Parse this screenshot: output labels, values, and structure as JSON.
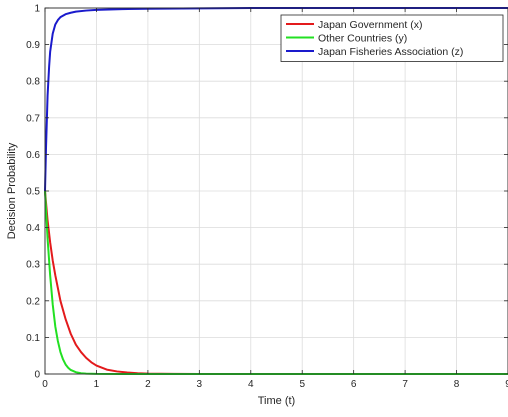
{
  "chart_data": {
    "type": "line",
    "xlabel": "Time (t)",
    "ylabel": "Decision Probability",
    "xlim": [
      0,
      9
    ],
    "ylim": [
      0,
      1
    ],
    "grid": true,
    "legend_position": "top-right",
    "x_ticks": [
      "0",
      "1",
      "2",
      "3",
      "4",
      "5",
      "6",
      "7",
      "8",
      "9"
    ],
    "y_ticks": [
      "0",
      "0.1",
      "0.2",
      "0.3",
      "0.4",
      "0.5",
      "0.6",
      "0.7",
      "0.8",
      "0.9",
      "1"
    ],
    "series": [
      {
        "name": "Japan Government (x)",
        "color": "#e31a1c",
        "x": [
          0,
          0.05,
          0.1,
          0.15,
          0.2,
          0.3,
          0.4,
          0.5,
          0.6,
          0.7,
          0.8,
          0.9,
          1.0,
          1.2,
          1.4,
          1.6,
          1.8,
          2.0,
          2.5,
          3,
          4,
          5,
          6,
          7,
          8,
          9
        ],
        "y": [
          0.5,
          0.42,
          0.36,
          0.31,
          0.27,
          0.2,
          0.15,
          0.11,
          0.08,
          0.06,
          0.044,
          0.032,
          0.023,
          0.012,
          0.007,
          0.004,
          0.002,
          0.001,
          0.0003,
          0.0001,
          0,
          0,
          0,
          0,
          0,
          0
        ]
      },
      {
        "name": "Other Countries (y)",
        "color": "#22e022",
        "x": [
          0,
          0.05,
          0.1,
          0.15,
          0.2,
          0.25,
          0.3,
          0.35,
          0.4,
          0.45,
          0.5,
          0.6,
          0.7,
          0.8,
          1.0,
          1.5,
          2,
          3,
          4,
          5,
          6,
          7,
          8,
          9
        ],
        "y": [
          0.5,
          0.37,
          0.27,
          0.19,
          0.13,
          0.09,
          0.06,
          0.04,
          0.026,
          0.017,
          0.011,
          0.005,
          0.002,
          0.001,
          0.0002,
          0,
          0,
          0,
          0,
          0,
          0,
          0,
          0,
          0
        ]
      },
      {
        "name": "Japan Fisheries Association (z)",
        "color": "#1a1acc",
        "x": [
          0,
          0.02,
          0.05,
          0.08,
          0.1,
          0.15,
          0.2,
          0.25,
          0.3,
          0.4,
          0.5,
          0.6,
          0.8,
          1.0,
          1.5,
          2,
          3,
          4,
          5,
          6,
          7,
          8,
          9
        ],
        "y": [
          0.5,
          0.62,
          0.76,
          0.84,
          0.88,
          0.93,
          0.955,
          0.967,
          0.975,
          0.983,
          0.987,
          0.99,
          0.993,
          0.995,
          0.997,
          0.998,
          0.999,
          1,
          1,
          1,
          1,
          1,
          1
        ]
      }
    ]
  }
}
